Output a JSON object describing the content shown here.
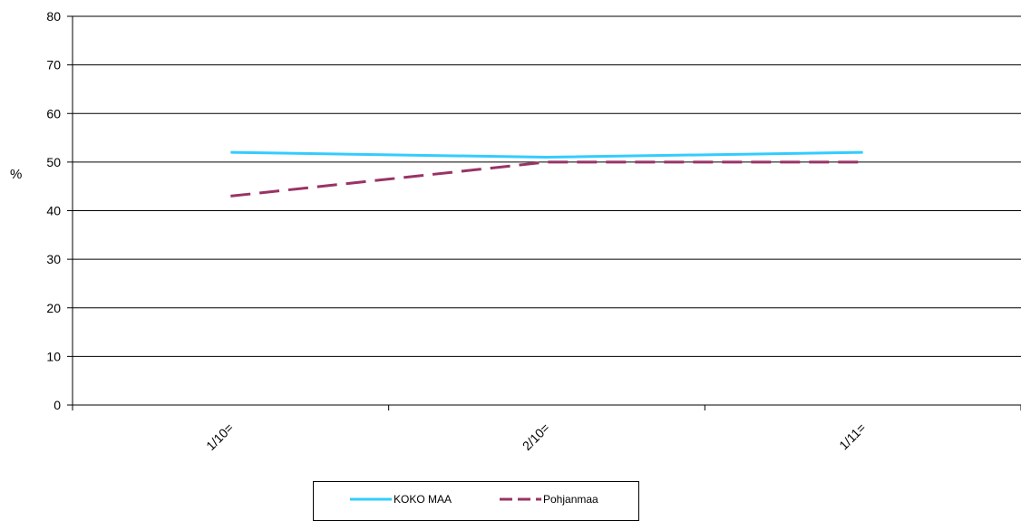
{
  "chart_data": {
    "type": "line",
    "title": "",
    "xlabel": "",
    "ylabel": "%",
    "ylim": [
      0,
      80
    ],
    "yticks": [
      0,
      10,
      20,
      30,
      40,
      50,
      60,
      70,
      80
    ],
    "categories": [
      "1/10=",
      "2/10=",
      "1/11="
    ],
    "grid": true,
    "legend_position": "bottom",
    "series": [
      {
        "name": "KOKO MAA",
        "values": [
          52,
          51,
          52
        ],
        "color": "#33CCFF",
        "style": "solid"
      },
      {
        "name": "Pohjanmaa",
        "values": [
          43,
          50,
          50
        ],
        "color": "#993366",
        "style": "dashed"
      }
    ]
  }
}
